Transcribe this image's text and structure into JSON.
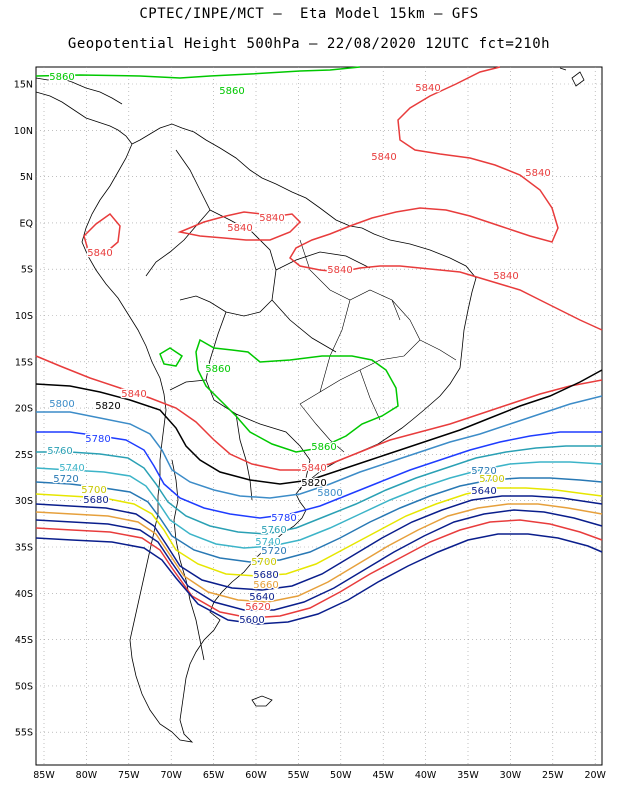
{
  "header": {
    "line1": "CPTEC/INPE/MCT –  Eta Model 15km – GFS",
    "line2": "Geopotential Height 500hPa – 22/08/2020 12UTC fct=210h"
  },
  "map": {
    "lat_labels": [
      "15N",
      "10N",
      "5N",
      "EQ",
      "5S",
      "10S",
      "15S",
      "20S",
      "25S",
      "30S",
      "35S",
      "40S",
      "45S",
      "50S",
      "55S"
    ],
    "lon_labels": [
      "85W",
      "80W",
      "75W",
      "70W",
      "65W",
      "60W",
      "55W",
      "50W",
      "45W",
      "40W",
      "35W",
      "30W",
      "25W",
      "20W"
    ],
    "contour_colors": {
      "5860": "#00c800",
      "5840": "#e83c3c",
      "5820": "#000000",
      "5800": "#3c8cc8",
      "5780": "#1e3cff",
      "5760": "#2aa0b4",
      "5740": "#3cb4c8",
      "5720": "#2878b4",
      "5700": "#e6e600",
      "5680": "#0a1e8c",
      "5660": "#e6a03c",
      "5640": "#0a1e8c",
      "5620": "#e83c3c",
      "5600": "#0a1e8c"
    },
    "contour_labels": [
      {
        "text": "5860",
        "color": "#00c800"
      },
      {
        "text": "5860",
        "color": "#00c800"
      },
      {
        "text": "5860",
        "color": "#00c800"
      },
      {
        "text": "5860",
        "color": "#00c800"
      },
      {
        "text": "5840",
        "color": "#e83c3c"
      },
      {
        "text": "5840",
        "color": "#e83c3c"
      },
      {
        "text": "5840",
        "color": "#e83c3c"
      },
      {
        "text": "5840",
        "color": "#e83c3c"
      },
      {
        "text": "5840",
        "color": "#e83c3c"
      },
      {
        "text": "5840",
        "color": "#e83c3c"
      },
      {
        "text": "5840",
        "color": "#e83c3c"
      },
      {
        "text": "5840",
        "color": "#e83c3c"
      },
      {
        "text": "5840",
        "color": "#e83c3c"
      },
      {
        "text": "5840",
        "color": "#e83c3c"
      },
      {
        "text": "5820",
        "color": "#000000"
      },
      {
        "text": "5820",
        "color": "#000000"
      },
      {
        "text": "5800",
        "color": "#3c8cc8"
      },
      {
        "text": "5800",
        "color": "#3c8cc8"
      },
      {
        "text": "5780",
        "color": "#1e3cff"
      },
      {
        "text": "5780",
        "color": "#1e3cff"
      },
      {
        "text": "5760",
        "color": "#2aa0b4"
      },
      {
        "text": "5760",
        "color": "#2aa0b4"
      },
      {
        "text": "5740",
        "color": "#3cb4c8"
      },
      {
        "text": "5740",
        "color": "#3cb4c8"
      },
      {
        "text": "5720",
        "color": "#2878b4"
      },
      {
        "text": "5720",
        "color": "#2878b4"
      },
      {
        "text": "5720",
        "color": "#2878b4"
      },
      {
        "text": "5700",
        "color": "#c8c800"
      },
      {
        "text": "5700",
        "color": "#c8c800"
      },
      {
        "text": "5700",
        "color": "#c8c800"
      },
      {
        "text": "5680",
        "color": "#0a1e8c"
      },
      {
        "text": "5680",
        "color": "#0a1e8c"
      },
      {
        "text": "5660",
        "color": "#e6a03c"
      },
      {
        "text": "5640",
        "color": "#0a1e8c"
      },
      {
        "text": "5640",
        "color": "#0a1e8c"
      },
      {
        "text": "5620",
        "color": "#e83c3c"
      },
      {
        "text": "5600",
        "color": "#0a1e8c"
      }
    ]
  }
}
